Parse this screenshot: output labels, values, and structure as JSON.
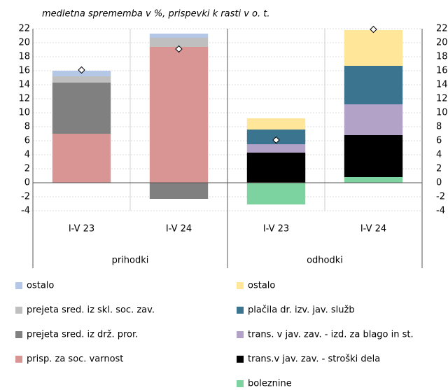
{
  "chart_data": {
    "type": "stacked-bar",
    "subtitle": "medletna sprememba v %, prispevki k rasti v o. t.",
    "categories": [
      "I-V 23",
      "I-V 24",
      "I-V 23",
      "I-V 24"
    ],
    "groups": [
      "prihodki",
      "odhodki"
    ],
    "ylim": [
      -4,
      22
    ],
    "yticks": [
      22,
      20,
      18,
      16,
      14,
      12,
      10,
      8,
      6,
      4,
      2,
      0,
      -2,
      -4
    ],
    "grid": true,
    "series": [
      {
        "name": "ostalo",
        "color": "#b4c7e7",
        "values": [
          0.8,
          0.6,
          null,
          null
        ]
      },
      {
        "name": "prejeta sred. iz skl. soc. zav.",
        "color": "#bfbfbf",
        "values": [
          0.9,
          1.3,
          null,
          null
        ]
      },
      {
        "name": "prejeta sred. iz drž. pror.",
        "color": "#808080",
        "values": [
          7.3,
          -2.3,
          null,
          null
        ]
      },
      {
        "name": "prisp. za soc. varnost",
        "color": "#d99594",
        "values": [
          7.0,
          19.4,
          null,
          null
        ]
      },
      {
        "name": "ostalo",
        "color": "#ffe699",
        "values": [
          null,
          null,
          1.6,
          5.1
        ]
      },
      {
        "name": "plačila dr. izv. jav. služb",
        "color": "#3a748e",
        "values": [
          null,
          null,
          2.1,
          5.5
        ]
      },
      {
        "name": "trans. v jav. zav. - izd. za blago in st.",
        "color": "#b3a2c7",
        "values": [
          null,
          null,
          1.2,
          4.4
        ]
      },
      {
        "name": "trans.v jav. zav. - stroški dela",
        "color": "#000000",
        "values": [
          null,
          null,
          4.3,
          6.0
        ]
      },
      {
        "name": "boleznine",
        "color": "#7dd3a0",
        "values": [
          null,
          null,
          -3.1,
          0.8
        ]
      }
    ],
    "markers": {
      "values": [
        16.1,
        19.1,
        6.1,
        21.9
      ]
    }
  }
}
